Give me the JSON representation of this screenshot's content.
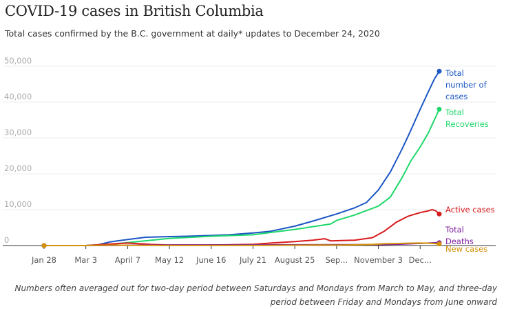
{
  "title": "COVID-19 cases in British Columbia",
  "subtitle": "Total cases confirmed by the B.C. government at daily* updates to December 24, 2020",
  "footnote": "Numbers often averaged out for two-day period between Saturdays and Mondays from March to May, and three-day period between Friday and Mondays from June onward",
  "chart_data": {
    "type": "line",
    "title": "COVID-19 cases in British Columbia",
    "ylim": [
      0,
      50000
    ],
    "yticks": [
      "0",
      "10,000",
      "20,000",
      "30,000",
      "40,000",
      "50,000"
    ],
    "ytick_values": [
      0,
      10000,
      20000,
      30000,
      40000,
      50000
    ],
    "xlim": [
      0,
      331
    ],
    "xticks": [
      {
        "label": "Jan 28",
        "day": 0
      },
      {
        "label": "Mar 3",
        "day": 35
      },
      {
        "label": "April 7",
        "day": 70
      },
      {
        "label": "May 12",
        "day": 105
      },
      {
        "label": "June 16",
        "day": 140
      },
      {
        "label": "July 21",
        "day": 175
      },
      {
        "label": "August 25",
        "day": 210
      },
      {
        "label": "Sep...",
        "day": 245
      },
      {
        "label": "November 3",
        "day": 280
      },
      {
        "label": "Dec...",
        "day": 315
      }
    ],
    "grid": true,
    "series": [
      {
        "name": "Total number of cases",
        "label_lines": [
          "Total",
          "number of",
          "cases"
        ],
        "color": "#1a56c4",
        "x": [
          0,
          35,
          45,
          55,
          70,
          85,
          105,
          120,
          140,
          155,
          175,
          190,
          210,
          225,
          245,
          260,
          270,
          280,
          290,
          300,
          307,
          315,
          322,
          327,
          331
        ],
        "y": [
          0,
          0,
          200,
          1000,
          1700,
          2300,
          2500,
          2600,
          2800,
          3000,
          3500,
          4000,
          5400,
          6800,
          8800,
          10500,
          12000,
          15500,
          20500,
          27000,
          32000,
          38000,
          43000,
          46500,
          48600
        ]
      },
      {
        "name": "Total Recoveries",
        "label_lines": [
          "Total",
          "Recoveries"
        ],
        "color": "#1ed86a",
        "x": [
          0,
          35,
          50,
          70,
          90,
          105,
          140,
          175,
          210,
          240,
          245,
          260,
          280,
          290,
          300,
          307,
          315,
          322,
          331
        ],
        "y": [
          0,
          0,
          200,
          800,
          1500,
          2000,
          2600,
          3000,
          4500,
          6000,
          7000,
          8500,
          11000,
          13500,
          19000,
          23500,
          27500,
          31500,
          38000
        ]
      },
      {
        "name": "Active cases",
        "label_lines": [
          "Active cases"
        ],
        "color": "#d9191c",
        "x": [
          0,
          35,
          50,
          70,
          90,
          105,
          140,
          175,
          190,
          210,
          225,
          235,
          240,
          260,
          275,
          285,
          295,
          305,
          315,
          322,
          325,
          328,
          331
        ],
        "y": [
          0,
          0,
          300,
          700,
          300,
          150,
          150,
          350,
          700,
          1100,
          1500,
          1900,
          1300,
          1500,
          2200,
          4000,
          6500,
          8200,
          9200,
          9700,
          10000,
          9700,
          8800
        ]
      },
      {
        "name": "Total Deaths",
        "label_lines": [
          "Total",
          "Deaths"
        ],
        "color": "#7c1d9e",
        "x": [
          0,
          35,
          60,
          80,
          105,
          140,
          175,
          210,
          245,
          280,
          300,
          315,
          331
        ],
        "y": [
          0,
          0,
          40,
          120,
          150,
          170,
          190,
          210,
          230,
          270,
          400,
          600,
          800
        ]
      },
      {
        "name": "New cases",
        "label_lines": [
          "New cases"
        ],
        "color": "#d4920a",
        "x": [
          0,
          35,
          45,
          60,
          75,
          90,
          105,
          140,
          175,
          200,
          215,
          230,
          245,
          260,
          275,
          285,
          295,
          305,
          315,
          322,
          327,
          331
        ],
        "y": [
          0,
          0,
          80,
          120,
          60,
          30,
          20,
          20,
          40,
          80,
          100,
          140,
          120,
          200,
          300,
          500,
          550,
          650,
          700,
          650,
          550,
          450
        ]
      }
    ]
  }
}
